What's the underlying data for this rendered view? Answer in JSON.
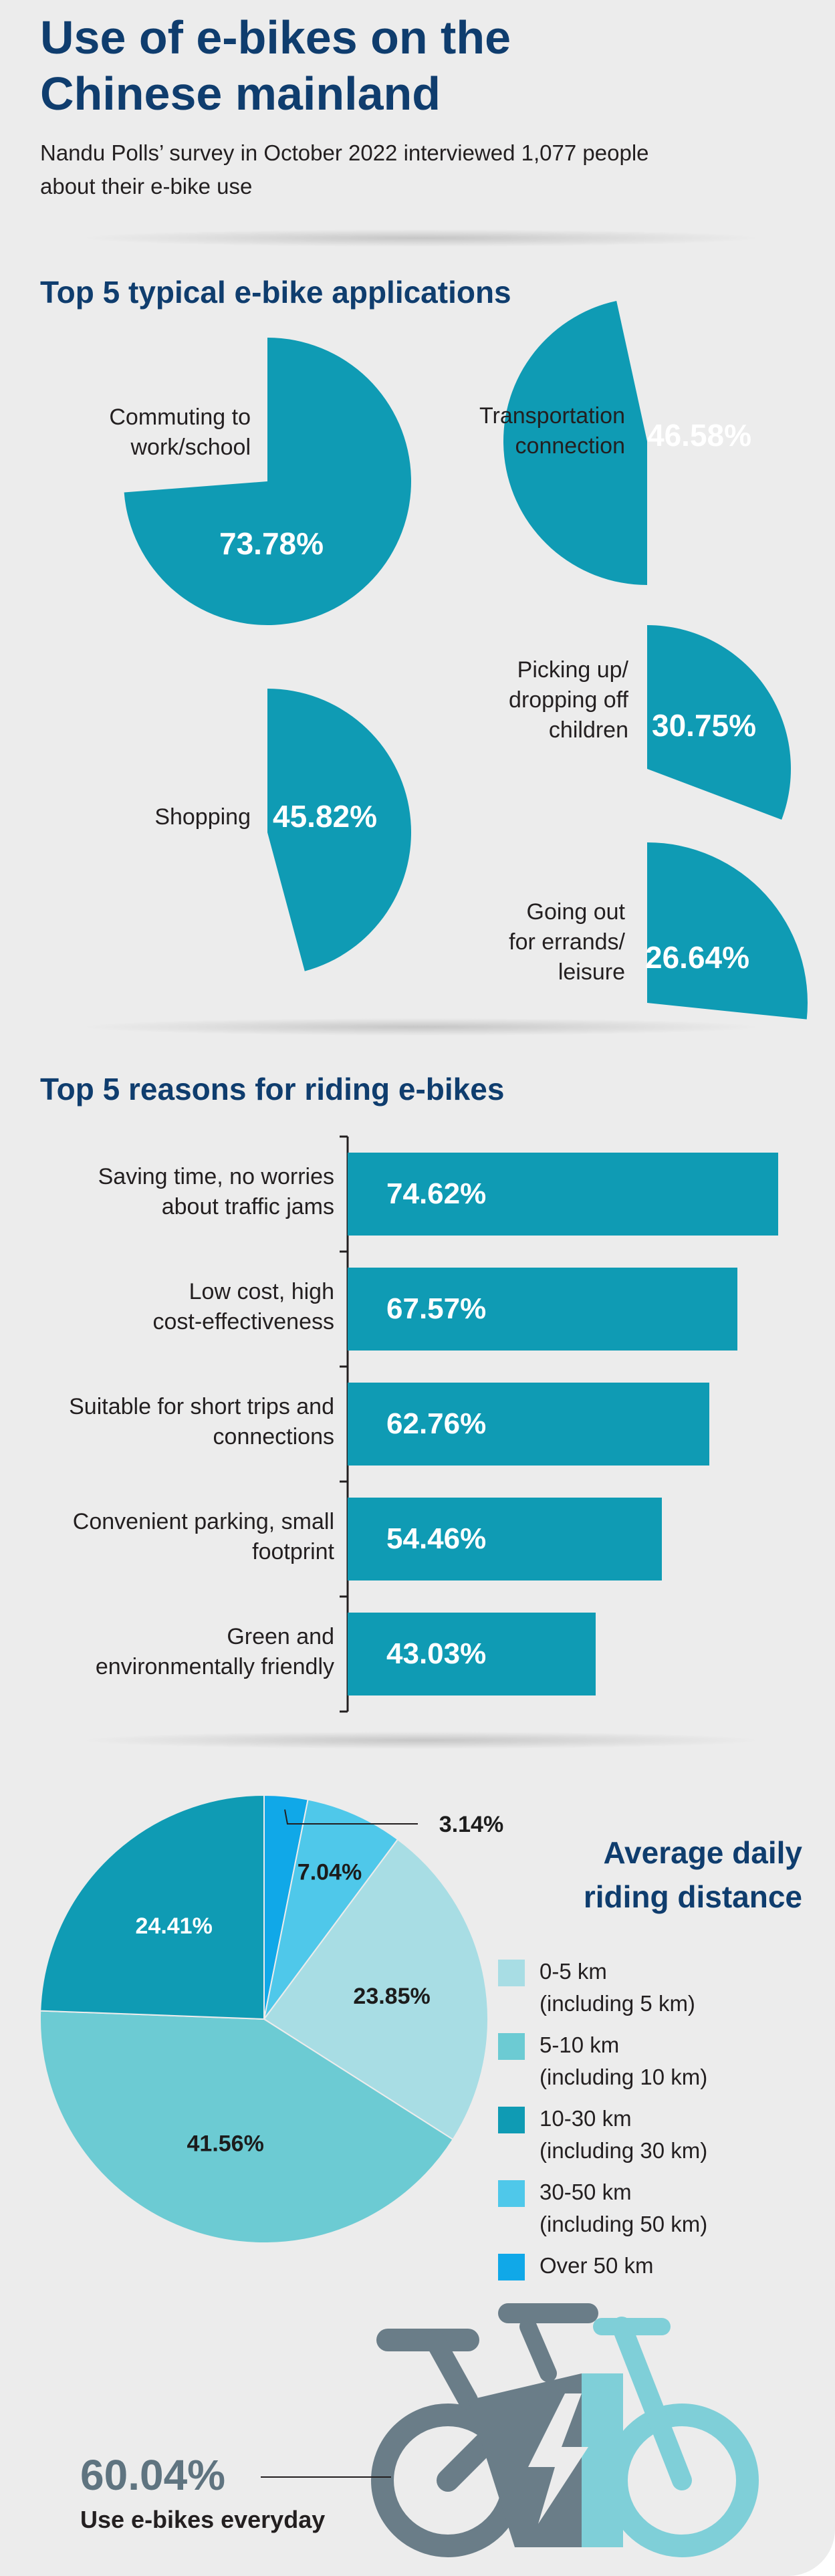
{
  "header": {
    "title_line1": "Use of e-bikes on the",
    "title_line2": "Chinese mainland",
    "subtitle_line1": "Nandu Polls’ survey in October 2022 interviewed 1,077 people",
    "subtitle_line2": "about their e-bike use"
  },
  "colors": {
    "title_blue": "#0f3d6e",
    "teal": "#0f9bb4",
    "background": "#ececec",
    "bike_dark": "#6a7d88",
    "bike_light": "#7fcfd8"
  },
  "footer": {
    "value": "60.04%",
    "caption": "Use e-bikes everyday",
    "icon": "e-bike-icon"
  },
  "chart_data": [
    {
      "type": "pie",
      "title": "Top 5 typical e-bike applications",
      "items": [
        {
          "label": "Commuting to work/school",
          "label_lines": [
            "Commuting to",
            "work/school"
          ],
          "value": 73.78,
          "value_label": "73.78%"
        },
        {
          "label": "Transportation connection",
          "label_lines": [
            "Transportation",
            "connection"
          ],
          "value": 46.58,
          "value_label": "46.58%"
        },
        {
          "label": "Picking up/dropping off children",
          "label_lines": [
            "Picking up/",
            "dropping off",
            "children"
          ],
          "value": 30.75,
          "value_label": "30.75%"
        },
        {
          "label": "Shopping",
          "label_lines": [
            "Shopping"
          ],
          "value": 45.82,
          "value_label": "45.82%"
        },
        {
          "label": "Going out for errands/leisure",
          "label_lines": [
            "Going out",
            "for errands/",
            "leisure"
          ],
          "value": 26.64,
          "value_label": "26.64%"
        }
      ]
    },
    {
      "type": "bar",
      "orientation": "horizontal",
      "title": "Top 5 reasons for riding e-bikes",
      "categories": [
        [
          "Saving time, no worries",
          "about traffic jams"
        ],
        [
          "Low cost, high",
          "cost-effectiveness"
        ],
        [
          "Suitable for short trips and",
          "connections"
        ],
        [
          "Convenient parking, small",
          "footprint"
        ],
        [
          "Green and",
          "environmentally friendly"
        ]
      ],
      "values": [
        74.62,
        67.57,
        62.76,
        54.46,
        43.03
      ],
      "value_labels": [
        "74.62%",
        "67.57%",
        "62.76%",
        "54.46%",
        "43.03%"
      ]
    },
    {
      "type": "pie",
      "title_lines": [
        "Average daily",
        "riding distance"
      ],
      "slices": [
        {
          "name_lines": [
            "0-5 km",
            "(including 5 km)"
          ],
          "value": 23.85,
          "value_label": "23.85%",
          "color": "#a8dde4"
        },
        {
          "name_lines": [
            "5-10 km",
            "(including 10 km)"
          ],
          "value": 41.56,
          "value_label": "41.56%",
          "color": "#6ccbd3"
        },
        {
          "name_lines": [
            "10-30 km",
            "(including 30 km)"
          ],
          "value": 24.41,
          "value_label": "24.41%",
          "color": "#0f9bb4"
        },
        {
          "name_lines": [
            "30-50 km",
            "(including 50 km)"
          ],
          "value": 7.04,
          "value_label": "7.04%",
          "color": "#4fc8ea"
        },
        {
          "name_lines": [
            "Over 50 km"
          ],
          "value": 3.14,
          "value_label": "3.14%",
          "color": "#10a8e8"
        }
      ]
    }
  ]
}
